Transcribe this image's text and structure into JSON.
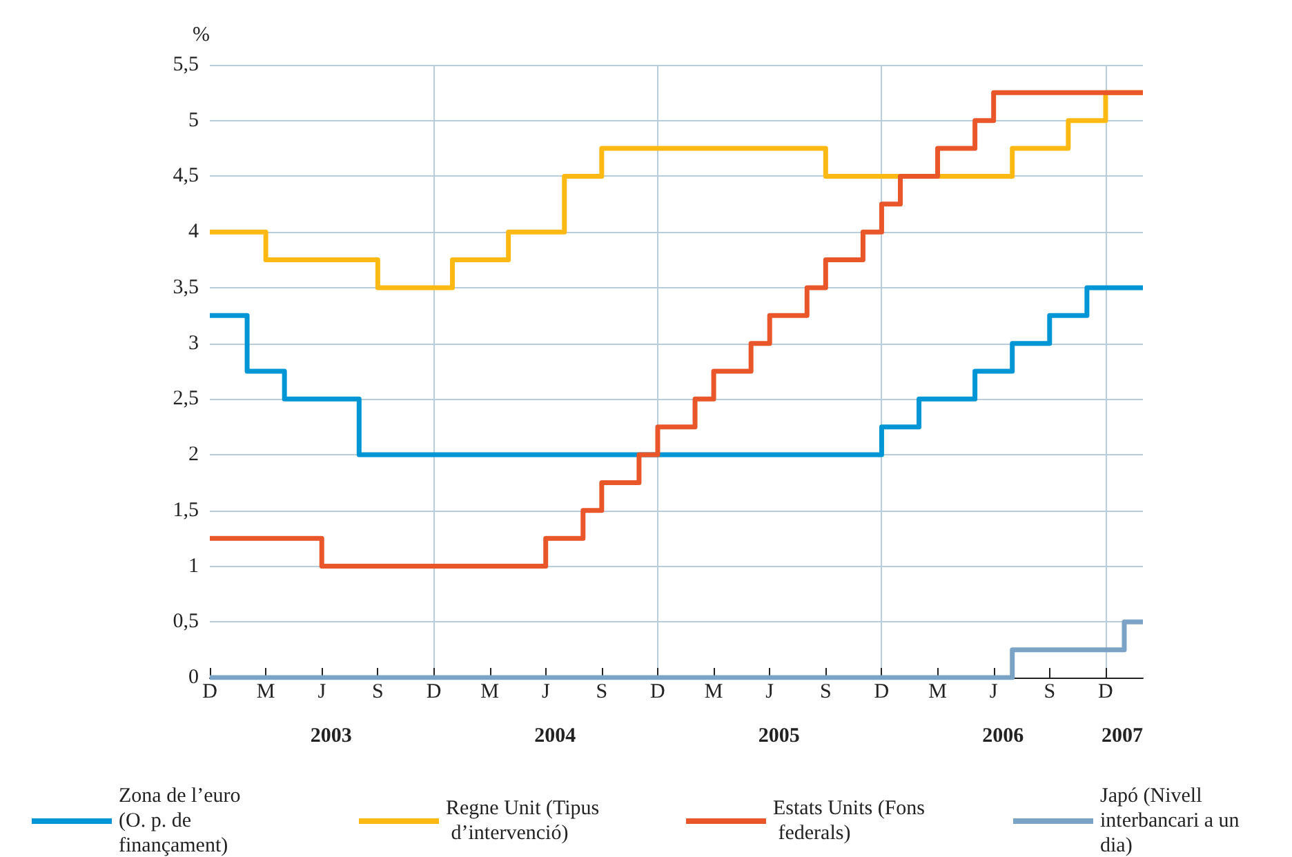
{
  "chart_data": {
    "type": "step",
    "ylabel": "%",
    "categories": [
      "D",
      null,
      null,
      "M",
      null,
      null,
      "J",
      null,
      null,
      "S",
      null,
      null,
      "D",
      null,
      null,
      "M",
      null,
      null,
      "J",
      null,
      null,
      "S",
      null,
      null,
      "D",
      null,
      null,
      "M",
      null,
      null,
      "J",
      null,
      null,
      "S",
      null,
      null,
      "D",
      null,
      null,
      "M",
      null,
      null,
      "J",
      null,
      null,
      "S",
      null,
      null,
      "D",
      null,
      null
    ],
    "ylim": [
      0,
      5.5
    ],
    "yticks": [
      0,
      {
        "value": 0.5,
        "label": "0,5"
      },
      1,
      {
        "value": 1.5,
        "label": "1,5"
      },
      2,
      {
        "value": 2.5,
        "label": "2,5"
      },
      3,
      {
        "value": 3.5,
        "label": "3,5"
      },
      4,
      {
        "value": 4.5,
        "label": "4,5"
      },
      5,
      {
        "value": 5.5,
        "label": "5,5"
      }
    ],
    "grid": true,
    "legend": "bottom",
    "marker": "none",
    "line_style": "solid",
    "annotations": [
      "2003",
      "2004",
      "2005",
      "2006",
      "2007"
    ],
    "series": [
      {
        "name": "Zona de l’euro (O. p. de finançament)",
        "color": "#0096d6",
        "values": [
          3.25,
          3.25,
          2.75,
          2.75,
          2.5,
          2.5,
          2.5,
          2.5,
          2.0,
          2.0,
          2.0,
          2.0,
          2.0,
          2.0,
          2.0,
          2.0,
          2.0,
          2.0,
          2.0,
          2.0,
          2.0,
          2.0,
          2.0,
          2.0,
          2.0,
          2.0,
          2.0,
          2.0,
          2.0,
          2.0,
          2.0,
          2.0,
          2.0,
          2.0,
          2.0,
          2.0,
          2.25,
          2.25,
          2.5,
          2.5,
          2.5,
          2.75,
          2.75,
          3.0,
          3.0,
          3.25,
          3.25,
          3.5,
          3.5,
          3.5,
          3.5
        ]
      },
      {
        "name": "Regne Unit (Tipus d’intervenció)",
        "color": "#fdb913",
        "values": [
          4.0,
          4.0,
          4.0,
          3.75,
          3.75,
          3.75,
          3.75,
          3.75,
          3.75,
          3.5,
          3.5,
          3.5,
          3.5,
          3.75,
          3.75,
          3.75,
          4.0,
          4.0,
          4.0,
          4.5,
          4.5,
          4.75,
          4.75,
          4.75,
          4.75,
          4.75,
          4.75,
          4.75,
          4.75,
          4.75,
          4.75,
          4.75,
          4.75,
          4.5,
          4.5,
          4.5,
          4.5,
          4.5,
          4.5,
          4.5,
          4.5,
          4.5,
          4.5,
          4.75,
          4.75,
          4.75,
          5.0,
          5.0,
          5.25,
          5.25,
          5.25
        ]
      },
      {
        "name": "Estats Units (Fons federals)",
        "color": "#e8562a",
        "values": [
          1.25,
          1.25,
          1.25,
          1.25,
          1.25,
          1.25,
          1.0,
          1.0,
          1.0,
          1.0,
          1.0,
          1.0,
          1.0,
          1.0,
          1.0,
          1.0,
          1.0,
          1.0,
          1.25,
          1.25,
          1.5,
          1.75,
          1.75,
          2.0,
          2.25,
          2.25,
          2.5,
          2.75,
          2.75,
          3.0,
          3.25,
          3.25,
          3.5,
          3.75,
          3.75,
          4.0,
          4.25,
          4.5,
          4.5,
          4.75,
          4.75,
          5.0,
          5.25,
          5.25,
          5.25,
          5.25,
          5.25,
          5.25,
          5.25,
          5.25,
          5.25
        ]
      },
      {
        "name": "Japó (Nivell interbancari a un dia)",
        "color": "#7ba3c6",
        "values": [
          0,
          0,
          0,
          0,
          0,
          0,
          0,
          0,
          0,
          0,
          0,
          0,
          0,
          0,
          0,
          0,
          0,
          0,
          0,
          0,
          0,
          0,
          0,
          0,
          0,
          0,
          0,
          0,
          0,
          0,
          0,
          0,
          0,
          0,
          0,
          0,
          0,
          0,
          0,
          0,
          0,
          0,
          0,
          0.25,
          0.25,
          0.25,
          0.25,
          0.25,
          0.25,
          0.5,
          0.5
        ]
      }
    ]
  }
}
